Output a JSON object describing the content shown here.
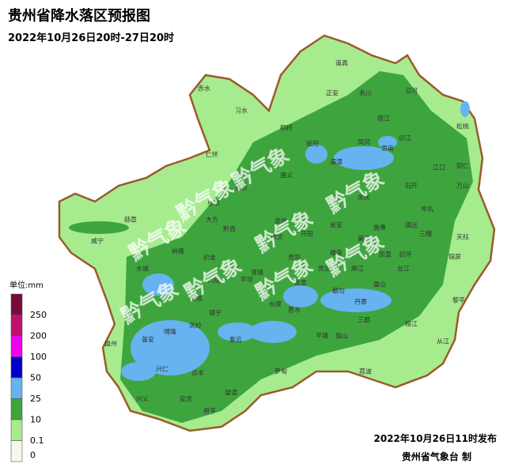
{
  "header": {
    "title": "贵州省降水落区预报图",
    "subtitle": "2022年10月26日20时-27日20时"
  },
  "legend": {
    "unit": "单位:mm",
    "levels": [
      {
        "label": "250",
        "color": "#7a0a3c"
      },
      {
        "label": "200",
        "color": "#c0106c"
      },
      {
        "label": "100",
        "color": "#f000f0"
      },
      {
        "label": "50",
        "color": "#0000c8"
      },
      {
        "label": "25",
        "color": "#66b3f0"
      },
      {
        "label": "10",
        "color": "#3ea53e"
      },
      {
        "label": "0.1",
        "color": "#a6ec8e"
      },
      {
        "label": "0",
        "color": "#f6f8ee"
      }
    ]
  },
  "watermark": "黔气象",
  "counties": [
    "道真",
    "正安",
    "务川",
    "沿河",
    "赤水",
    "习水",
    "桐梓",
    "德江",
    "印江",
    "松桃",
    "绥阳",
    "凤冈",
    "思南",
    "湄潭",
    "江口",
    "铜仁",
    "仁怀",
    "遵义",
    "金沙",
    "石阡",
    "万山",
    "余庆",
    "毕节",
    "赫章",
    "大方",
    "黔西",
    "息烽",
    "瓮安",
    "施秉",
    "镇远",
    "岑巩",
    "三穗",
    "天柱",
    "威宁",
    "纳雍",
    "织金",
    "修文",
    "开阳",
    "福泉",
    "黄平",
    "凯里",
    "剑河",
    "锦屏",
    "水城",
    "清镇",
    "贵阳",
    "贵定",
    "麻江",
    "台江",
    "六枝",
    "平坝",
    "龙里",
    "雷山",
    "安顺",
    "长顺",
    "惠水",
    "都匀",
    "丹寨",
    "黎平",
    "镇宁",
    "关岭",
    "紫云",
    "三都",
    "榕江",
    "晴隆",
    "普安",
    "盘州",
    "平塘",
    "独山",
    "从江",
    "兴仁",
    "贞丰",
    "罗甸",
    "荔波",
    "兴义",
    "安龙",
    "册亨",
    "望谟"
  ],
  "footer": {
    "issue_time": "2022年10月26日11时发布",
    "issuer": "贵州省气象台 制"
  }
}
